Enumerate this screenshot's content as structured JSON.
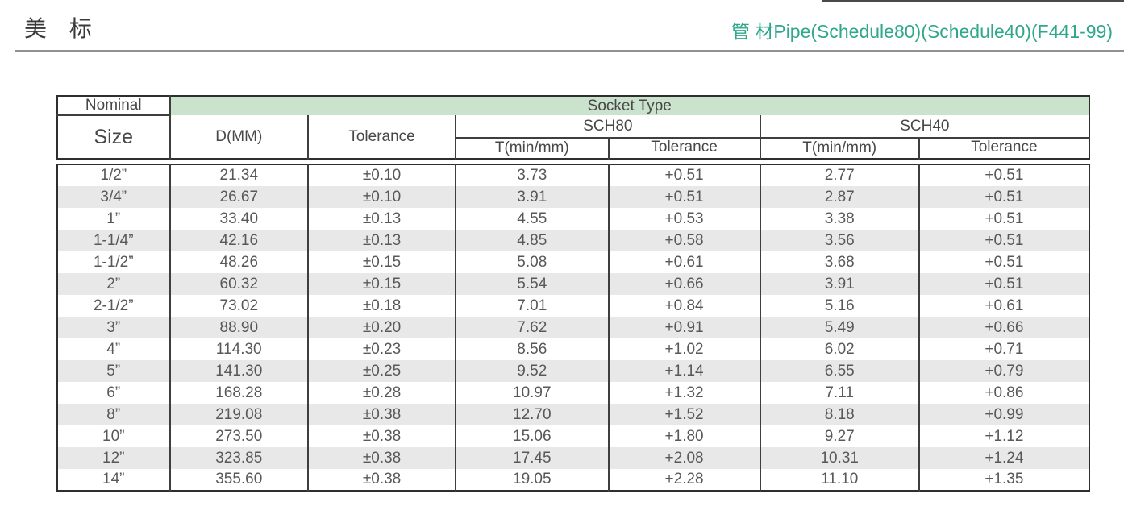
{
  "page": {
    "title_left": "美 标",
    "title_right": "管 材Pipe(Schedule80)(Schedule40)(F441-99)",
    "colors": {
      "accent": "#2fa78c",
      "socket_header_bg": "#cbe2cc",
      "row_stripe": "#e8e8e8",
      "border": "#2e2e2e"
    }
  },
  "table": {
    "header": {
      "nominal": "Nominal",
      "size": "Size",
      "socket_type": "Socket Type",
      "d_mm": "D(MM)",
      "tolerance": "Tolerance",
      "sch80": "SCH80",
      "sch40": "SCH40",
      "t_min_mm": "T(min/mm)"
    },
    "columns": [
      "Nominal Size",
      "D(MM)",
      "Tolerance",
      "SCH80 T(min/mm)",
      "SCH80 Tolerance",
      "SCH40 T(min/mm)",
      "SCH40 Tolerance"
    ],
    "rows": [
      [
        "1/2”",
        "21.34",
        "±0.10",
        "3.73",
        "+0.51",
        "2.77",
        "+0.51"
      ],
      [
        "3/4”",
        "26.67",
        "±0.10",
        "3.91",
        "+0.51",
        "2.87",
        "+0.51"
      ],
      [
        "1”",
        "33.40",
        "±0.13",
        "4.55",
        "+0.53",
        "3.38",
        "+0.51"
      ],
      [
        "1-1/4”",
        "42.16",
        "±0.13",
        "4.85",
        "+0.58",
        "3.56",
        "+0.51"
      ],
      [
        "1-1/2”",
        "48.26",
        "±0.15",
        "5.08",
        "+0.61",
        "3.68",
        "+0.51"
      ],
      [
        "2”",
        "60.32",
        "±0.15",
        "5.54",
        "+0.66",
        "3.91",
        "+0.51"
      ],
      [
        "2-1/2”",
        "73.02",
        "±0.18",
        "7.01",
        "+0.84",
        "5.16",
        "+0.61"
      ],
      [
        "3”",
        "88.90",
        "±0.20",
        "7.62",
        "+0.91",
        "5.49",
        "+0.66"
      ],
      [
        "4”",
        "114.30",
        "±0.23",
        "8.56",
        "+1.02",
        "6.02",
        "+0.71"
      ],
      [
        "5”",
        "141.30",
        "±0.25",
        "9.52",
        "+1.14",
        "6.55",
        "+0.79"
      ],
      [
        "6”",
        "168.28",
        "±0.28",
        "10.97",
        "+1.32",
        "7.11",
        "+0.86"
      ],
      [
        "8”",
        "219.08",
        "±0.38",
        "12.70",
        "+1.52",
        "8.18",
        "+0.99"
      ],
      [
        "10”",
        "273.50",
        "±0.38",
        "15.06",
        "+1.80",
        "9.27",
        "+1.12"
      ],
      [
        "12”",
        "323.85",
        "±0.38",
        "17.45",
        "+2.08",
        "10.31",
        "+1.24"
      ],
      [
        "14”",
        "355.60",
        "±0.38",
        "19.05",
        "+2.28",
        "11.10",
        "+1.35"
      ]
    ]
  }
}
